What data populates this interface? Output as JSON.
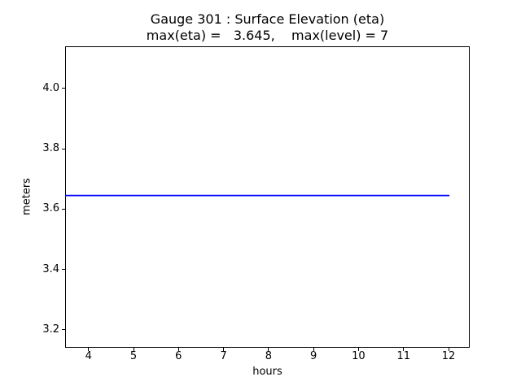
{
  "chart_data": {
    "type": "line",
    "title_line1": "Gauge 301 : Surface Elevation (eta)",
    "title_line2": "max(eta) =   3.645,    max(level) = 7",
    "xlabel": "hours",
    "ylabel": "meters",
    "xlim": [
      3.48,
      12.47
    ],
    "ylim": [
      3.14,
      4.14
    ],
    "xticks": [
      4,
      5,
      6,
      7,
      8,
      9,
      10,
      11,
      12
    ],
    "yticks": [
      3.2,
      3.4,
      3.6,
      3.8,
      4.0
    ],
    "grid": false,
    "legend": "none",
    "max_eta": 3.645,
    "max_level": 7,
    "series": [
      {
        "name": "eta",
        "color": "#0000ff",
        "x": [
          3.48,
          12.02
        ],
        "y": [
          3.645,
          3.645
        ]
      }
    ],
    "colors": {
      "line": "#0000ff",
      "axis": "#000000",
      "background": "#ffffff"
    }
  }
}
